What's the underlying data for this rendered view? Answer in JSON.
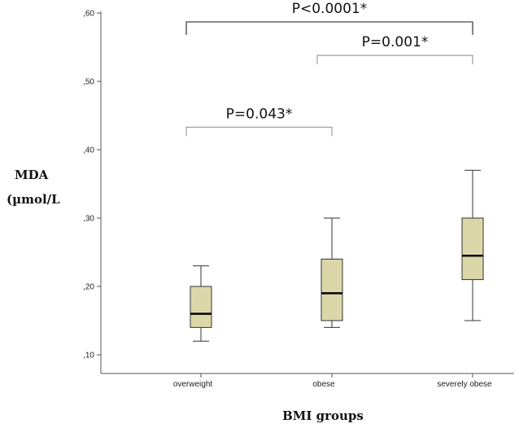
{
  "chart_data": {
    "type": "boxplot",
    "xlabel": "BMI groups",
    "ylabel_line1": "MDA",
    "ylabel_line2": "(µmol/L",
    "ylim": [
      0.08,
      0.6
    ],
    "yticks": [
      {
        "value": 0.1,
        "label": ",10"
      },
      {
        "value": 0.2,
        "label": ",20"
      },
      {
        "value": 0.3,
        "label": ",30"
      },
      {
        "value": 0.4,
        "label": ",40"
      },
      {
        "value": 0.5,
        "label": ",50"
      },
      {
        "value": 0.6,
        "label": ",60"
      }
    ],
    "categories": [
      "overweight",
      "obese",
      "severely obese"
    ],
    "boxes": [
      {
        "category": "overweight",
        "min": 0.12,
        "q1": 0.14,
        "median": 0.16,
        "q3": 0.2,
        "max": 0.23
      },
      {
        "category": "obese",
        "min": 0.14,
        "q1": 0.15,
        "median": 0.19,
        "q3": 0.24,
        "max": 0.3
      },
      {
        "category": "severely obese",
        "min": 0.15,
        "q1": 0.21,
        "median": 0.245,
        "q3": 0.3,
        "max": 0.37
      }
    ],
    "box_color": "#dcd7a8",
    "comparisons": [
      {
        "from": 0,
        "to": 1,
        "y": 0.433,
        "label": "P=0.043*"
      },
      {
        "from": 1,
        "to": 2,
        "y": 0.538,
        "label": "P=0.001*"
      },
      {
        "from": 0,
        "to": 2,
        "y": 0.587,
        "label": "P<0.0001*"
      }
    ]
  }
}
